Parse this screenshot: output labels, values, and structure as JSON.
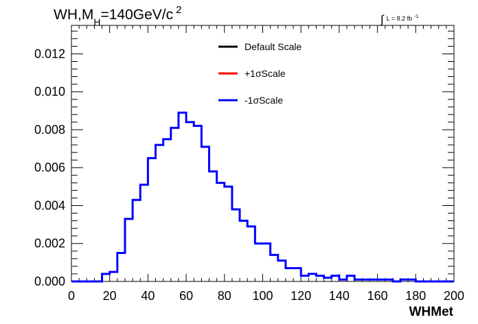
{
  "chart_data": {
    "type": "histogram",
    "title_parts": {
      "main": "WH,M",
      "sub": "H",
      "rest": "=140GeV/c",
      "sup": "2"
    },
    "lumi_parts": {
      "integral": "∫",
      "text": "L = 8.2 fb",
      "sup": "-1"
    },
    "xlabel": "WHMet",
    "ylabel": "",
    "xlim": [
      0,
      200
    ],
    "ylim": [
      0,
      0.0135
    ],
    "x_ticks": [
      "0",
      "20",
      "40",
      "60",
      "80",
      "100",
      "120",
      "140",
      "160",
      "180",
      "200"
    ],
    "y_ticks": [
      "0.000",
      "0.002",
      "0.004",
      "0.006",
      "0.008",
      "0.010",
      "0.012"
    ],
    "bin_width": 4,
    "legend": [
      {
        "label": "Default Scale",
        "color": "#000000"
      },
      {
        "label": "+1σScale",
        "color": "#ff0000"
      },
      {
        "label": "-1σScale",
        "color": "#0000ff"
      }
    ],
    "series": [
      {
        "name": "-1σScale",
        "color": "#0000ff",
        "values": [
          0,
          0,
          0,
          0,
          0.0004,
          0.0005,
          0.0015,
          0.0033,
          0.0043,
          0.0051,
          0.0065,
          0.0072,
          0.0075,
          0.0081,
          0.0089,
          0.0084,
          0.0082,
          0.0071,
          0.0058,
          0.0052,
          0.005,
          0.0038,
          0.0032,
          0.0029,
          0.002,
          0.002,
          0.0014,
          0.0011,
          0.0007,
          0.0007,
          0.0003,
          0.0004,
          0.0003,
          0.0002,
          0.0003,
          0.0001,
          0.0003,
          0.0001,
          0.0001,
          0.0001,
          0.0001,
          0.0001,
          0,
          0.0001,
          0.0001,
          0,
          0,
          0,
          0,
          0
        ]
      }
    ]
  }
}
